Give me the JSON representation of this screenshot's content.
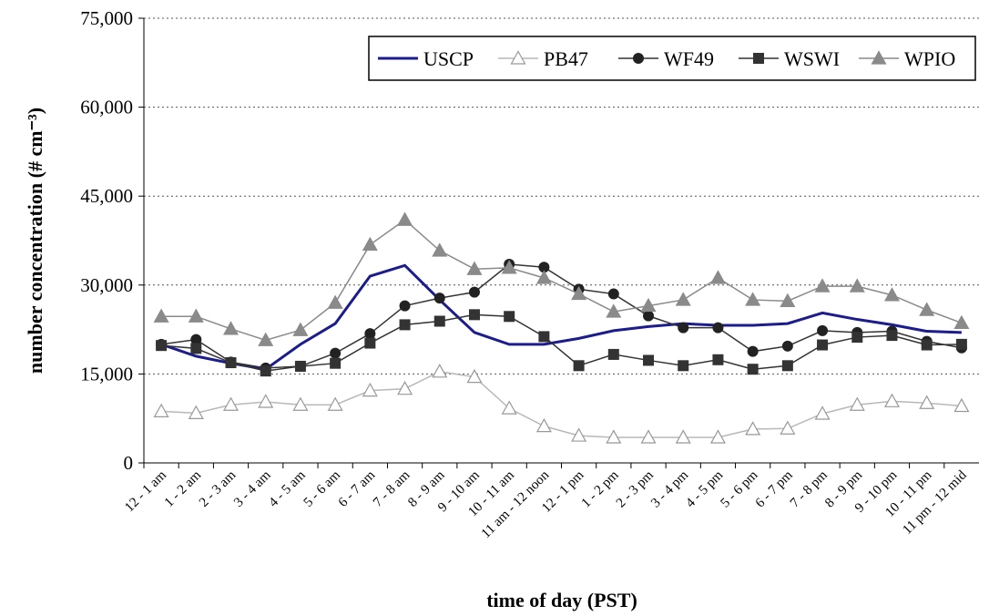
{
  "chart_data": {
    "type": "line",
    "xlabel": "time of day (PST)",
    "ylabel": "number concentration (# cm⁻³)",
    "categories": [
      "12 - 1 am",
      "1 - 2 am",
      "2 - 3 am",
      "3 - 4 am",
      "4 - 5 am",
      "5 - 6 am",
      "6 - 7 am",
      "7 - 8 am",
      "8 - 9 am",
      "9 - 10 am",
      "10 - 11 am",
      "11 am - 12 noon",
      "12 - 1 pm",
      "1 - 2 pm",
      "2 - 3 pm",
      "3 - 4 pm",
      "4 - 5 pm",
      "5 - 6 pm",
      "6 - 7 pm",
      "7 - 8 pm",
      "8 - 9 pm",
      "9 - 10 pm",
      "10 - 11 pm",
      "11 pm - 12 mid"
    ],
    "series": [
      {
        "name": "USCP",
        "color": "#1c1c8c",
        "marker": "none",
        "values": [
          20000,
          18000,
          16800,
          15800,
          20000,
          23500,
          31500,
          33300,
          27500,
          22000,
          20000,
          20000,
          21000,
          22300,
          23000,
          23500,
          23200,
          23200,
          23500,
          25300,
          24200,
          23300,
          22200,
          22000
        ]
      },
      {
        "name": "PB47",
        "color": "#b8b8b8",
        "marker": "open-triangle",
        "values": [
          8700,
          8400,
          9800,
          10300,
          9800,
          9800,
          12200,
          12500,
          15400,
          14500,
          9200,
          6200,
          4600,
          4300,
          4300,
          4300,
          4300,
          5700,
          5800,
          8300,
          9800,
          10400,
          10100,
          9600
        ]
      },
      {
        "name": "WF49",
        "color": "#333333",
        "marker": "circle",
        "values": [
          20000,
          20800,
          17000,
          16000,
          16300,
          18500,
          21800,
          26500,
          27800,
          28800,
          33500,
          33000,
          29300,
          28500,
          24800,
          22800,
          22800,
          18800,
          19700,
          22300,
          22000,
          22200,
          20500,
          19400
        ]
      },
      {
        "name": "WSWI",
        "color": "#333333",
        "marker": "square",
        "values": [
          19800,
          19300,
          16900,
          15500,
          16300,
          16800,
          20200,
          23300,
          23900,
          25000,
          24700,
          21300,
          16400,
          18300,
          17300,
          16400,
          17400,
          15800,
          16400,
          19900,
          21200,
          21500,
          19900,
          20000
        ]
      },
      {
        "name": "WPIO",
        "color": "#8a8a8a",
        "marker": "triangle",
        "values": [
          24700,
          24700,
          22600,
          20700,
          22400,
          27000,
          36800,
          41000,
          35800,
          32700,
          32900,
          31200,
          28500,
          25500,
          26500,
          27500,
          31200,
          27500,
          27300,
          29800,
          29800,
          28300,
          25800,
          23600
        ]
      }
    ],
    "ylim": [
      0,
      75000
    ],
    "yticks": [
      0,
      {
        "value": 15000,
        "label": "15,000"
      },
      {
        "value": 30000,
        "label": "30,000"
      },
      {
        "value": 45000,
        "label": "45,000"
      },
      {
        "value": 60000,
        "label": "60,000"
      },
      {
        "value": 75000,
        "label": "75,000"
      }
    ],
    "grid": true,
    "legend": "top-right"
  }
}
